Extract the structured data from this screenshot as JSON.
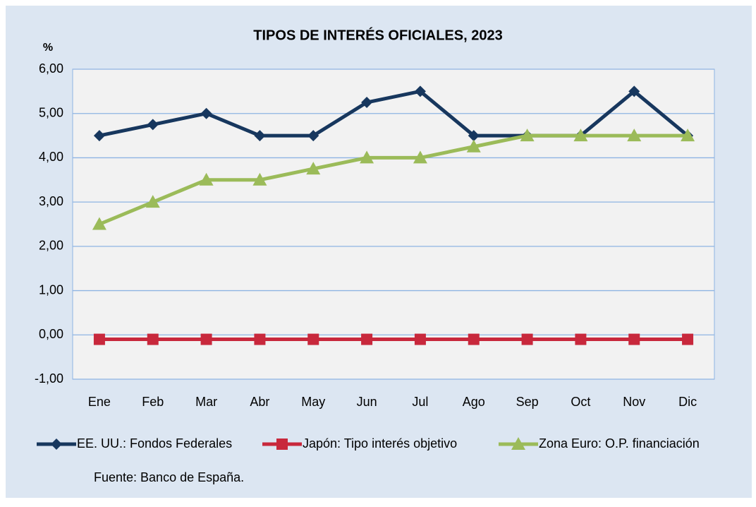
{
  "chart_data": {
    "type": "line",
    "title": "TIPOS DE INTERÉS OFICIALES, 2023",
    "y_label": "%",
    "source": "Fuente: Banco de España.",
    "categories": [
      "Ene",
      "Feb",
      "Mar",
      "Abr",
      "May",
      "Jun",
      "Jul",
      "Ago",
      "Sep",
      "Oct",
      "Nov",
      "Dic"
    ],
    "series": [
      {
        "name": "EE. UU.: Fondos Federales",
        "color": "#17375e",
        "marker": "diamond",
        "values": [
          4.5,
          4.75,
          5.0,
          4.5,
          4.5,
          5.25,
          5.5,
          4.5,
          4.5,
          4.5,
          5.5,
          4.5
        ]
      },
      {
        "name": "Japón: Tipo interés objetivo",
        "color": "#c8283c",
        "marker": "square",
        "values": [
          -0.1,
          -0.1,
          -0.1,
          -0.1,
          -0.1,
          -0.1,
          -0.1,
          -0.1,
          -0.1,
          -0.1,
          -0.1,
          -0.1
        ]
      },
      {
        "name": "Zona Euro: O.P. financiación",
        "color": "#9bbb59",
        "marker": "triangle",
        "values": [
          2.5,
          3.0,
          3.5,
          3.5,
          3.75,
          4.0,
          4.0,
          4.25,
          4.5,
          4.5,
          4.5,
          4.5
        ]
      }
    ],
    "ylim": [
      -1,
      6
    ],
    "yticks": [
      {
        "value": -1,
        "label": "-1,00"
      },
      {
        "value": 0,
        "label": "0,00"
      },
      {
        "value": 1,
        "label": "1,00"
      },
      {
        "value": 2,
        "label": "2,00"
      },
      {
        "value": 3,
        "label": "3,00"
      },
      {
        "value": 4,
        "label": "4,00"
      },
      {
        "value": 5,
        "label": "5,00"
      },
      {
        "value": 6,
        "label": "6,00"
      }
    ],
    "grid": true
  }
}
